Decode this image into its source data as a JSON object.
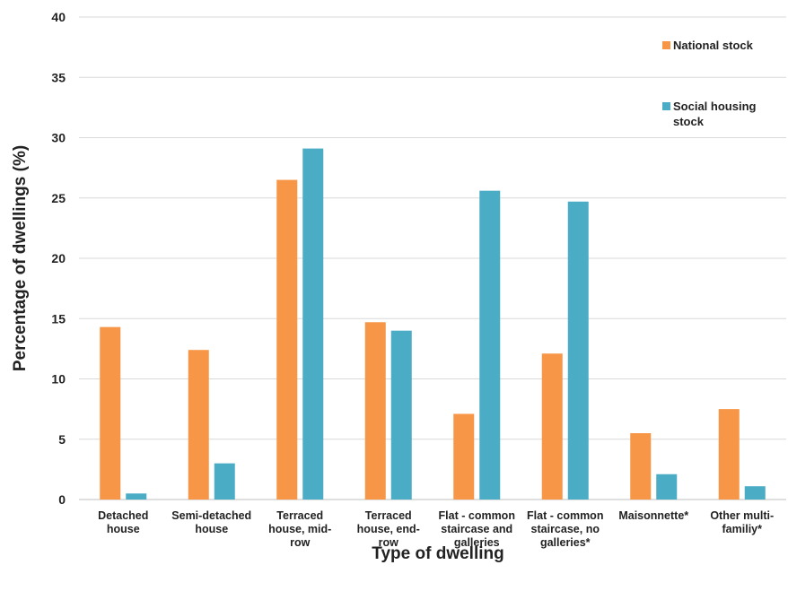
{
  "chart_data": {
    "type": "bar",
    "title": "",
    "xlabel": "Type of dwelling",
    "ylabel": "Percentage of dwellings (%)",
    "ylim": [
      0,
      40
    ],
    "yticks": [
      0,
      5,
      10,
      15,
      20,
      25,
      30,
      35,
      40
    ],
    "grid": true,
    "legend_position": "right",
    "categories": [
      [
        "Detached",
        "house"
      ],
      [
        "Semi-detached",
        "house"
      ],
      [
        "Terraced",
        "house, mid-",
        "row"
      ],
      [
        "Terraced",
        "house, end-",
        "row"
      ],
      [
        "Flat - common",
        "staircase and",
        "galleries"
      ],
      [
        "Flat - common",
        "staircase, no",
        "galleries*"
      ],
      [
        "Maisonnette*"
      ],
      [
        "Other multi-",
        "familiy*"
      ]
    ],
    "series": [
      {
        "name": [
          "National stock"
        ],
        "color": "#F79646",
        "values": [
          14.3,
          12.4,
          26.5,
          14.7,
          7.1,
          12.1,
          5.5,
          7.5
        ]
      },
      {
        "name": [
          "Social housing",
          "stock"
        ],
        "color": "#4BACC6",
        "values": [
          0.5,
          3.0,
          29.1,
          14.0,
          25.6,
          24.7,
          2.1,
          1.1
        ]
      }
    ]
  }
}
